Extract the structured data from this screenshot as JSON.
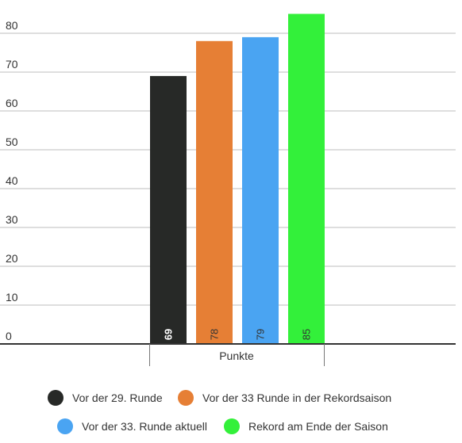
{
  "chart_data": {
    "type": "bar",
    "categories": [
      "Punkte"
    ],
    "series": [
      {
        "name": "Vor der 29. Runde",
        "values": [
          69
        ],
        "color": "#272927",
        "label_color": "#ffffff"
      },
      {
        "name": "Vor der 33 Runde in der Rekordsaison",
        "values": [
          78
        ],
        "color": "#e67f35",
        "label_color": "#333333"
      },
      {
        "name": "Vor der 33. Runde aktuell",
        "values": [
          79
        ],
        "color": "#4aa4f2",
        "label_color": "#333333"
      },
      {
        "name": "Rekord am Ende der Saison",
        "values": [
          85
        ],
        "color": "#33f03a",
        "label_color": "#333333"
      }
    ],
    "y_ticks": [
      "0",
      "10",
      "20",
      "30",
      "40",
      "50",
      "60",
      "70",
      "80"
    ],
    "ylim": [
      0,
      90
    ],
    "grid": true,
    "legend_position": "bottom",
    "data_labels": [
      "69",
      "78",
      "79",
      "85"
    ]
  }
}
